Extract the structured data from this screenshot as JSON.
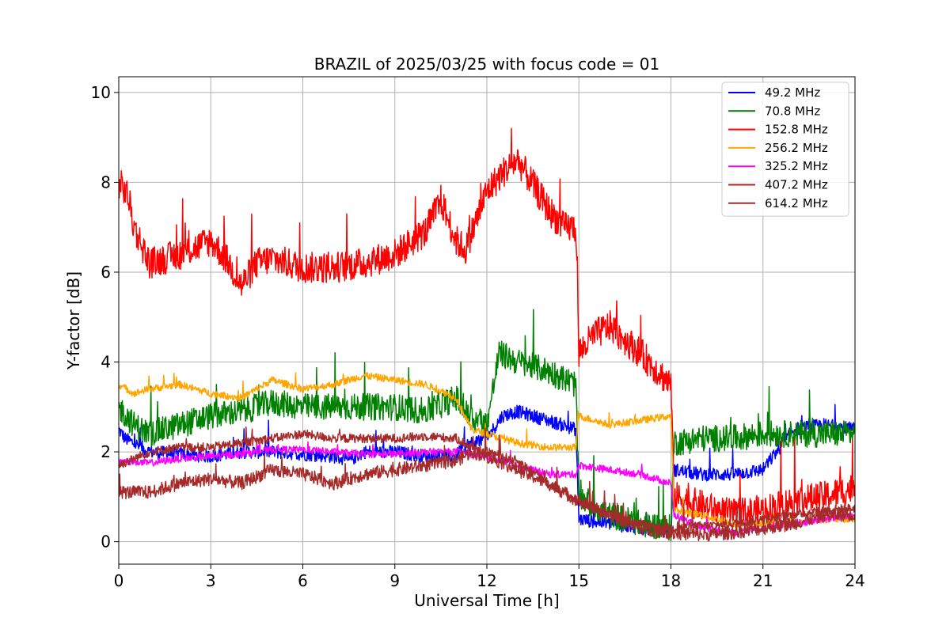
{
  "chart_data": {
    "type": "line",
    "title": "BRAZIL of 2025/03/25 with focus code = 01",
    "xlabel": "Universal Time [h]",
    "ylabel": "Y-factor [dB]",
    "xlim": [
      0,
      24
    ],
    "ylim": [
      -0.5,
      10.35
    ],
    "xticks": [
      0,
      3,
      6,
      9,
      12,
      15,
      18,
      21,
      24
    ],
    "yticks": [
      0,
      2,
      4,
      6,
      8,
      10
    ],
    "grid": true,
    "legend_position": "top-right",
    "series": [
      {
        "name": " 49.2 MHz",
        "color": "#0000ff",
        "noise": 0.15,
        "x": [
          0,
          0.2,
          1,
          3,
          4,
          5,
          6,
          7,
          7.5,
          8,
          9,
          10,
          11,
          11.2,
          11.5,
          12,
          12.5,
          13,
          14,
          14.9,
          15.0,
          16,
          17,
          18,
          18.1,
          19,
          20,
          21,
          22,
          23,
          24
        ],
        "y": [
          2.5,
          2.3,
          2.0,
          1.9,
          2.0,
          2.0,
          1.95,
          1.9,
          1.8,
          2.0,
          2.0,
          1.9,
          1.9,
          2.1,
          2.2,
          2.3,
          2.8,
          2.9,
          2.7,
          2.5,
          0.5,
          0.4,
          0.3,
          0.2,
          1.6,
          1.5,
          1.5,
          1.6,
          2.5,
          2.6,
          2.5
        ]
      },
      {
        "name": " 70.8 MHz",
        "color": "#008000",
        "noise": 0.3,
        "x": [
          0,
          0.5,
          1,
          2,
          3,
          4,
          5,
          6,
          7,
          8,
          9,
          10,
          11,
          11.4,
          12,
          12.4,
          13,
          14,
          14.9,
          15.0,
          16,
          17,
          18,
          18.1,
          19,
          20,
          21,
          22,
          23,
          24
        ],
        "y": [
          3.0,
          2.6,
          2.4,
          2.6,
          2.8,
          2.9,
          3.1,
          3.0,
          3.0,
          3.0,
          3.0,
          2.9,
          3.2,
          2.8,
          2.6,
          4.2,
          4.0,
          3.8,
          3.5,
          1.0,
          0.6,
          0.4,
          0.3,
          2.2,
          2.3,
          2.3,
          2.4,
          2.4,
          2.4,
          2.4
        ]
      },
      {
        "name": " 152.8 MHz",
        "color": "#ff0000",
        "noise": 0.35,
        "x": [
          0,
          0.3,
          0.5,
          1,
          2,
          3,
          3.5,
          4,
          4.5,
          5,
          6,
          7,
          8,
          9,
          10,
          10.5,
          11,
          11.3,
          12,
          12.5,
          13,
          14,
          14.5,
          14.9,
          15.0,
          15.5,
          16,
          17,
          18,
          18.1,
          19,
          20,
          21,
          22,
          23,
          24
        ],
        "y": [
          8.0,
          7.7,
          7.0,
          6.2,
          6.4,
          6.7,
          6.3,
          5.7,
          6.2,
          6.3,
          6.1,
          6.1,
          6.2,
          6.4,
          6.9,
          7.6,
          6.7,
          6.5,
          7.8,
          8.2,
          8.5,
          7.4,
          7.0,
          7.0,
          4.2,
          4.6,
          4.8,
          4.2,
          3.5,
          1.0,
          0.8,
          0.6,
          0.7,
          0.9,
          1.0,
          1.2
        ]
      },
      {
        "name": " 256.2 MHz",
        "color": "#ffa500",
        "noise": 0.08,
        "x": [
          0,
          0.5,
          1,
          2,
          3,
          4,
          5,
          6,
          7,
          8,
          9,
          10,
          11,
          11.5,
          12,
          12.5,
          13,
          14,
          14.9,
          15.0,
          16,
          17,
          18,
          18.1,
          19,
          20,
          21,
          22,
          23,
          24
        ],
        "y": [
          3.5,
          3.3,
          3.4,
          3.5,
          3.3,
          3.2,
          3.6,
          3.4,
          3.5,
          3.7,
          3.6,
          3.5,
          3.2,
          2.5,
          2.4,
          2.3,
          2.2,
          2.1,
          2.1,
          2.8,
          2.6,
          2.7,
          2.8,
          0.7,
          0.6,
          0.4,
          0.4,
          0.4,
          0.5,
          0.5
        ]
      },
      {
        "name": " 325.2 MHz",
        "color": "#ff00ff",
        "noise": 0.08,
        "x": [
          0,
          1,
          2,
          3,
          4,
          5,
          6,
          7,
          8,
          9,
          10,
          11,
          12,
          13,
          14,
          14.9,
          15.0,
          16,
          17,
          18,
          18.1,
          19,
          20,
          21,
          22,
          23,
          24
        ],
        "y": [
          1.8,
          1.75,
          1.85,
          1.9,
          1.95,
          2.05,
          2.05,
          2.0,
          1.95,
          1.95,
          2.0,
          2.0,
          1.9,
          1.7,
          1.5,
          1.5,
          1.7,
          1.6,
          1.5,
          1.3,
          0.6,
          0.3,
          0.2,
          0.3,
          0.4,
          0.5,
          0.6
        ]
      },
      {
        "name": " 407.2 MHz",
        "color": "#a52a2a",
        "noise": 0.1,
        "x": [
          0,
          1,
          2,
          3,
          4,
          5,
          6,
          7,
          8,
          9,
          10,
          11,
          11.5,
          12,
          13,
          14,
          15,
          16,
          17,
          18,
          19,
          20,
          21,
          22,
          23,
          24
        ],
        "y": [
          1.7,
          2.0,
          2.1,
          2.1,
          2.2,
          2.3,
          2.4,
          2.3,
          2.3,
          2.3,
          2.35,
          2.3,
          2.1,
          2.0,
          1.8,
          1.3,
          0.9,
          0.6,
          0.4,
          0.3,
          0.35,
          0.4,
          0.5,
          0.6,
          0.7,
          0.75
        ]
      },
      {
        "name": " 614.2 MHz",
        "color": "#a52a2a",
        "noise": 0.15,
        "x": [
          0,
          1,
          2,
          3,
          4,
          5,
          6,
          7,
          8,
          9,
          10,
          11,
          11.5,
          12,
          13,
          14,
          15,
          16,
          17,
          18,
          19,
          20,
          21,
          22,
          23,
          24
        ],
        "y": [
          1.1,
          1.1,
          1.3,
          1.4,
          1.3,
          1.6,
          1.5,
          1.3,
          1.5,
          1.6,
          1.7,
          1.8,
          2.0,
          1.9,
          1.6,
          1.3,
          0.9,
          0.6,
          0.3,
          0.2,
          0.15,
          0.2,
          0.3,
          0.4,
          0.6,
          0.6
        ]
      }
    ]
  }
}
